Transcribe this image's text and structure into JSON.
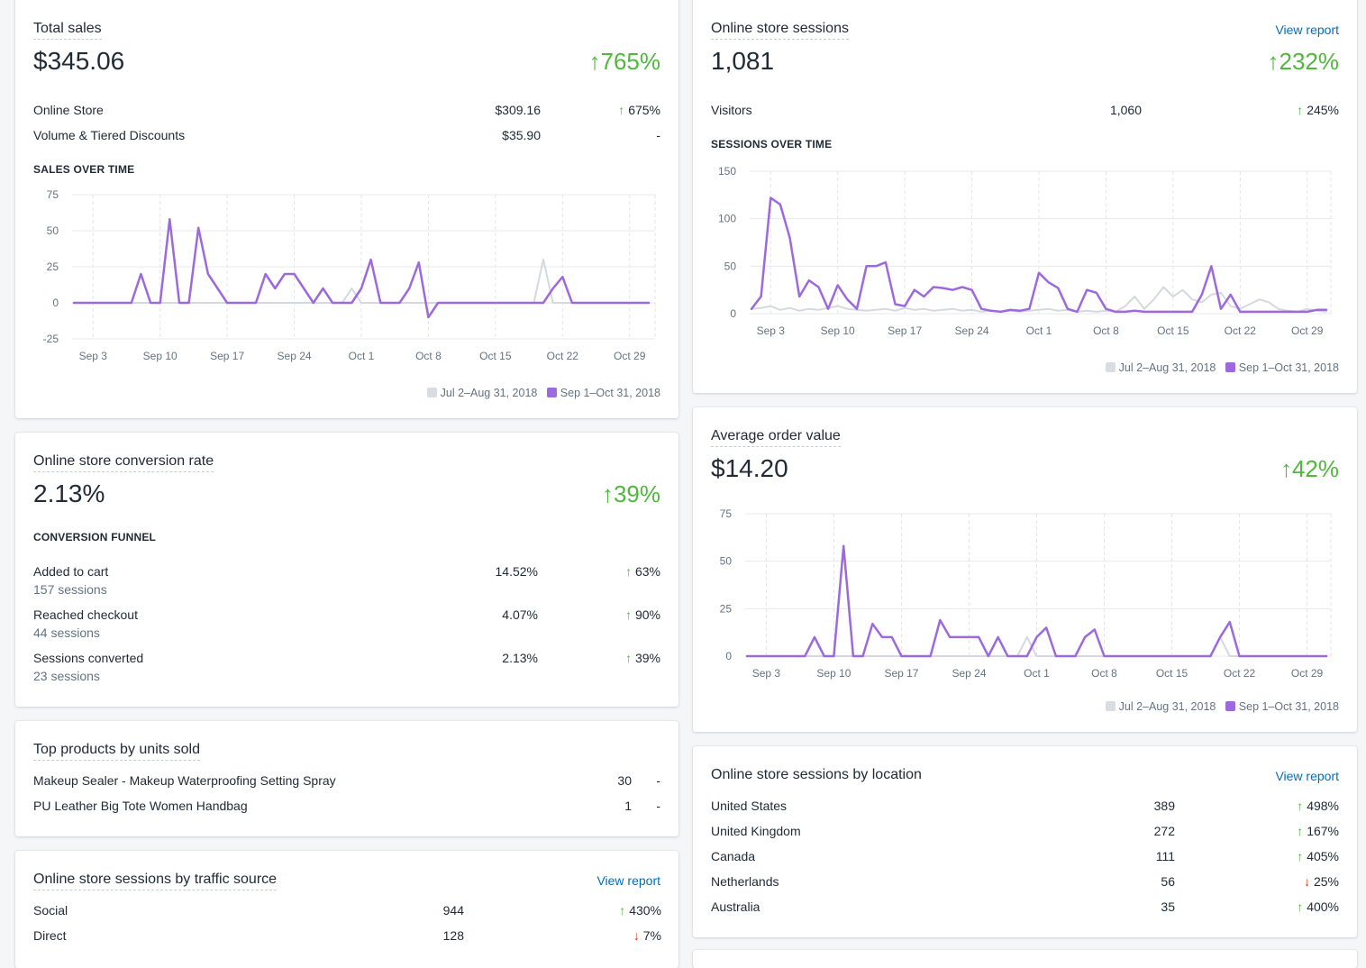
{
  "colors": {
    "current": "#9c6ade",
    "previous": "#dfe3e8",
    "up": "#50b83c",
    "down": "#de3618",
    "link": "#006fbb"
  },
  "icons": {
    "up": "arrow-up-icon",
    "down": "arrow-down-icon"
  },
  "legend": {
    "previous": "Jul 2–Aug 31, 2018",
    "current": "Sep 1–Oct 31, 2018"
  },
  "view_report": "View report",
  "total_sales": {
    "title": "Total sales",
    "value": "$345.06",
    "delta": "765%",
    "rows": [
      {
        "label": "Online Store",
        "value": "$309.16",
        "arrow": "↑",
        "delta": "675%"
      },
      {
        "label": "Volume & Tiered Discounts",
        "value": "$35.90",
        "arrow": "",
        "delta": "-"
      }
    ],
    "chart_label": "SALES OVER TIME"
  },
  "sessions": {
    "title": "Online store sessions",
    "value": "1,081",
    "delta": "232%",
    "rows": [
      {
        "label": "Visitors",
        "value": "1,060",
        "arrow": "↑",
        "delta": "245%"
      }
    ],
    "chart_label": "SESSIONS OVER TIME"
  },
  "conversion": {
    "title": "Online store conversion rate",
    "value": "2.13%",
    "delta": "39%",
    "funnel_label": "CONVERSION FUNNEL",
    "rows": [
      {
        "label": "Added to cart",
        "sub": "157 sessions",
        "value": "14.52%",
        "arrow": "↑",
        "delta": "63%"
      },
      {
        "label": "Reached checkout",
        "sub": "44 sessions",
        "value": "4.07%",
        "arrow": "↑",
        "delta": "90%"
      },
      {
        "label": "Sessions converted",
        "sub": "23 sessions",
        "value": "2.13%",
        "arrow": "↑",
        "delta": "39%"
      }
    ]
  },
  "aov": {
    "title": "Average order value",
    "value": "$14.20",
    "delta": "42%"
  },
  "top_products": {
    "title": "Top products by units sold",
    "rows": [
      {
        "label": "Makeup Sealer - Makeup Waterproofing Setting Spray",
        "value": "30",
        "delta": "-"
      },
      {
        "label": "PU Leather Big Tote Women Handbag",
        "value": "1",
        "delta": "-"
      }
    ]
  },
  "traffic": {
    "title": "Online store sessions by traffic source",
    "rows": [
      {
        "label": "Social",
        "value": "944",
        "arrow": "↑",
        "dir": "up",
        "delta": "430%"
      },
      {
        "label": "Direct",
        "value": "128",
        "arrow": "↓",
        "dir": "down",
        "delta": "7%"
      }
    ]
  },
  "location": {
    "title": "Online store sessions by location",
    "rows": [
      {
        "label": "United States",
        "value": "389",
        "arrow": "↑",
        "dir": "up",
        "delta": "498%"
      },
      {
        "label": "United Kingdom",
        "value": "272",
        "arrow": "↑",
        "dir": "up",
        "delta": "167%"
      },
      {
        "label": "Canada",
        "value": "111",
        "arrow": "↑",
        "dir": "up",
        "delta": "405%"
      },
      {
        "label": "Netherlands",
        "value": "56",
        "arrow": "↓",
        "dir": "down",
        "delta": "25%"
      },
      {
        "label": "Australia",
        "value": "35",
        "arrow": "↑",
        "dir": "up",
        "delta": "400%"
      }
    ]
  },
  "chart_data": [
    {
      "id": "sales",
      "type": "line",
      "title": "SALES OVER TIME",
      "x_ticks": [
        "Sep 3",
        "Sep 10",
        "Sep 17",
        "Sep 24",
        "Oct 1",
        "Oct 8",
        "Oct 15",
        "Oct 22",
        "Oct 29"
      ],
      "y_ticks": [
        75,
        50,
        25,
        0,
        -25
      ],
      "ylim": [
        -25,
        75
      ],
      "grid": true,
      "legend_position": "bottom-right",
      "series": [
        {
          "name": "Sep 1–Oct 31, 2018",
          "values": [
            0,
            0,
            0,
            0,
            0,
            0,
            0,
            20,
            0,
            0,
            58,
            0,
            0,
            52,
            20,
            10,
            0,
            0,
            0,
            0,
            20,
            10,
            20,
            20,
            10,
            0,
            10,
            0,
            0,
            0,
            10,
            30,
            0,
            0,
            0,
            10,
            28,
            -10,
            0,
            0,
            0,
            0,
            0,
            0,
            0,
            0,
            0,
            0,
            0,
            0,
            10,
            18,
            0,
            0,
            0,
            0,
            0,
            0,
            0,
            0,
            0
          ]
        },
        {
          "name": "Jul 2–Aug 31, 2018",
          "values": [
            0,
            0,
            0,
            0,
            0,
            0,
            0,
            0,
            0,
            0,
            0,
            0,
            0,
            0,
            0,
            0,
            0,
            0,
            0,
            0,
            0,
            0,
            0,
            0,
            0,
            0,
            0,
            0,
            0,
            10,
            0,
            0,
            0,
            0,
            0,
            0,
            0,
            0,
            0,
            0,
            0,
            0,
            0,
            0,
            0,
            0,
            0,
            0,
            0,
            30,
            0,
            0,
            0,
            0,
            0,
            0,
            0,
            0,
            0,
            0,
            0
          ]
        }
      ]
    },
    {
      "id": "sessions",
      "type": "line",
      "title": "SESSIONS OVER TIME",
      "x_ticks": [
        "Sep 3",
        "Sep 10",
        "Sep 17",
        "Sep 24",
        "Oct 1",
        "Oct 8",
        "Oct 15",
        "Oct 22",
        "Oct 29"
      ],
      "y_ticks": [
        150,
        100,
        50,
        0
      ],
      "ylim": [
        0,
        150
      ],
      "grid": true,
      "legend_position": "bottom-right",
      "series": [
        {
          "name": "Sep 1–Oct 31, 2018",
          "values": [
            5,
            18,
            122,
            115,
            80,
            18,
            35,
            28,
            5,
            30,
            15,
            5,
            50,
            50,
            54,
            10,
            8,
            25,
            18,
            28,
            27,
            25,
            28,
            25,
            5,
            3,
            2,
            4,
            3,
            5,
            43,
            33,
            27,
            5,
            2,
            25,
            22,
            5,
            2,
            2,
            3,
            2,
            2,
            2,
            2,
            2,
            2,
            20,
            50,
            5,
            20,
            2,
            2,
            2,
            2,
            2,
            2,
            2,
            2,
            4,
            4
          ]
        },
        {
          "name": "Jul 2–Aug 31, 2018",
          "values": [
            5,
            6,
            8,
            4,
            6,
            3,
            5,
            4,
            6,
            8,
            5,
            4,
            3,
            4,
            5,
            3,
            6,
            4,
            5,
            3,
            4,
            5,
            3,
            4,
            2,
            3,
            2,
            3,
            2,
            3,
            4,
            5,
            3,
            4,
            2,
            3,
            2,
            3,
            2,
            8,
            18,
            5,
            15,
            28,
            18,
            25,
            15,
            12,
            20,
            22,
            8,
            5,
            10,
            15,
            12,
            5,
            3,
            2,
            5,
            3,
            2
          ]
        }
      ]
    },
    {
      "id": "aov",
      "type": "line",
      "title": "",
      "x_ticks": [
        "Sep 3",
        "Sep 10",
        "Sep 17",
        "Sep 24",
        "Oct 1",
        "Oct 8",
        "Oct 15",
        "Oct 22",
        "Oct 29"
      ],
      "y_ticks": [
        75,
        50,
        25,
        0
      ],
      "ylim": [
        0,
        75
      ],
      "grid": true,
      "legend_position": "bottom-right",
      "series": [
        {
          "name": "Sep 1–Oct 31, 2018",
          "values": [
            0,
            0,
            0,
            0,
            0,
            0,
            0,
            10,
            0,
            0,
            58,
            0,
            0,
            17,
            10,
            10,
            0,
            0,
            0,
            0,
            19,
            10,
            10,
            10,
            10,
            0,
            10,
            0,
            0,
            0,
            10,
            15,
            0,
            0,
            0,
            10,
            14,
            0,
            0,
            0,
            0,
            0,
            0,
            0,
            0,
            0,
            0,
            0,
            0,
            10,
            18,
            0,
            0,
            0,
            0,
            0,
            0,
            0,
            0,
            0,
            0
          ]
        },
        {
          "name": "Jul 2–Aug 31, 2018",
          "values": [
            0,
            0,
            0,
            0,
            0,
            0,
            0,
            0,
            0,
            0,
            0,
            0,
            0,
            0,
            0,
            0,
            0,
            0,
            0,
            0,
            0,
            0,
            0,
            0,
            0,
            0,
            0,
            0,
            0,
            10,
            0,
            0,
            0,
            0,
            0,
            0,
            0,
            0,
            0,
            0,
            0,
            0,
            0,
            0,
            0,
            0,
            0,
            0,
            0,
            10,
            0,
            0,
            0,
            0,
            0,
            0,
            0,
            0,
            0,
            0,
            0
          ]
        }
      ]
    }
  ]
}
